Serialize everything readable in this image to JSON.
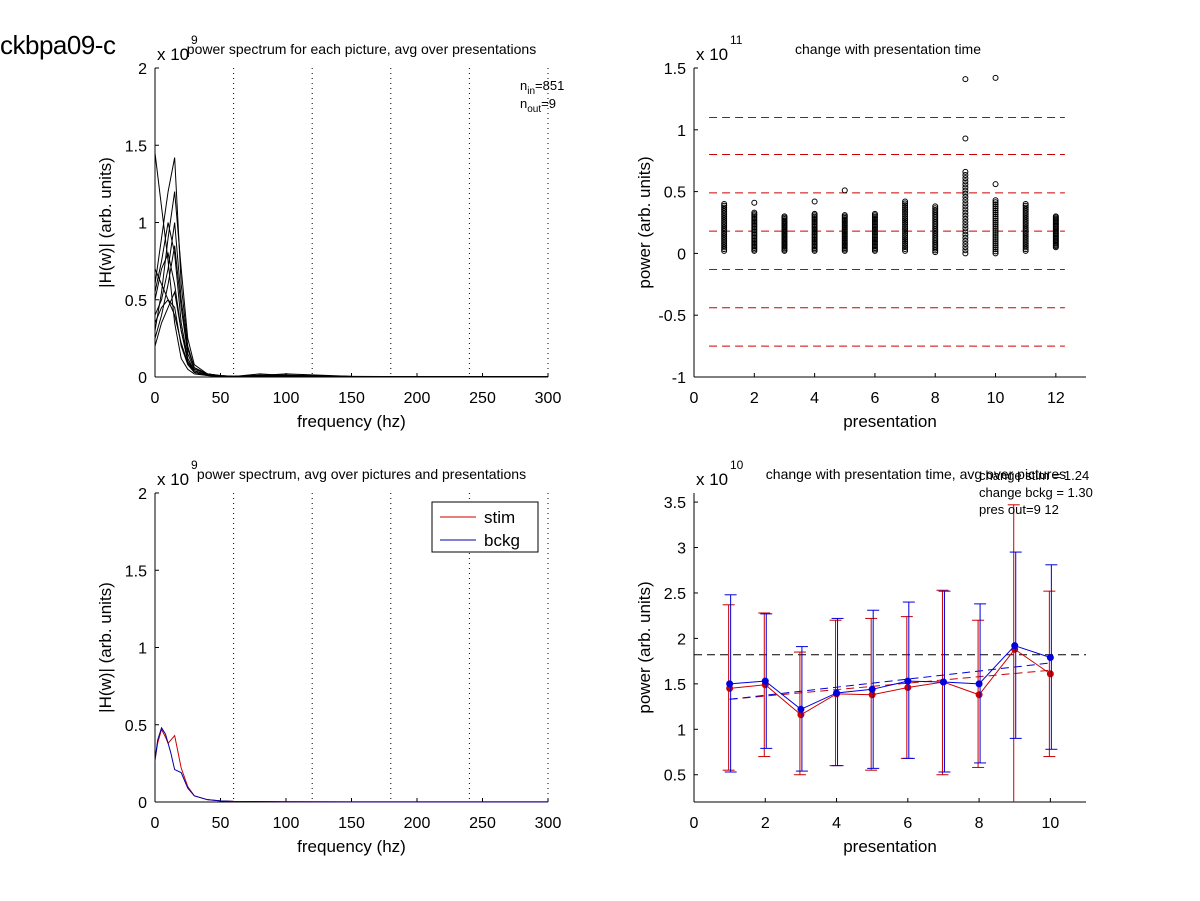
{
  "figure_label": "ckbpa09-c",
  "chart_data": [
    {
      "id": "tl",
      "type": "line",
      "title": "power spectrum for each picture, avg over presentations",
      "xlabel": "frequency (hz)",
      "ylabel": "|H(w)| (arb. units)",
      "xlim": [
        0,
        300
      ],
      "ylim": [
        0,
        2
      ],
      "xticks": [
        "0",
        "50",
        "100",
        "150",
        "200",
        "250",
        "300"
      ],
      "yticks": [
        "0",
        "0.5",
        "1",
        "1.5",
        "2"
      ],
      "exponent_base": "x 10",
      "exponent_power": "9",
      "vlines_dotted": [
        60,
        120,
        180,
        240,
        300
      ],
      "n_in_prefix": "n",
      "n_in_sub": "in",
      "n_in_value": "=851",
      "n_out_prefix": "n",
      "n_out_sub": "out",
      "n_out_value": "=9",
      "line_color": "#000000",
      "x": [
        0,
        5,
        10,
        15,
        20,
        25,
        30,
        40,
        50,
        60,
        80,
        100,
        150,
        200,
        250,
        300
      ],
      "series": [
        {
          "values": [
            1.45,
            1.1,
            0.75,
            0.35,
            0.12,
            0.05,
            0.02,
            0.01,
            0.005,
            0.003,
            0.02,
            0.01,
            0.004,
            0.003,
            0.002,
            0.001
          ]
        },
        {
          "values": [
            0.6,
            0.9,
            1.2,
            1.42,
            0.6,
            0.2,
            0.06,
            0.02,
            0.008,
            0.005,
            0.01,
            0.02,
            0.004,
            0.002,
            0.002,
            0.001
          ]
        },
        {
          "values": [
            0.3,
            0.55,
            0.9,
            1.2,
            0.7,
            0.25,
            0.08,
            0.02,
            0.01,
            0.004,
            0.006,
            0.01,
            0.003,
            0.002,
            0.001,
            0.001
          ]
        },
        {
          "values": [
            0.5,
            0.7,
            0.8,
            0.6,
            0.3,
            0.1,
            0.04,
            0.015,
            0.006,
            0.003,
            0.012,
            0.005,
            0.002,
            0.002,
            0.001,
            0.001
          ]
        },
        {
          "values": [
            0.25,
            0.4,
            0.6,
            0.85,
            0.45,
            0.15,
            0.05,
            0.02,
            0.007,
            0.004,
            0.008,
            0.006,
            0.003,
            0.002,
            0.001,
            0.001
          ]
        },
        {
          "values": [
            0.7,
            0.6,
            0.5,
            0.45,
            0.2,
            0.08,
            0.03,
            0.01,
            0.005,
            0.003,
            0.005,
            0.004,
            0.002,
            0.001,
            0.001,
            0.001
          ]
        },
        {
          "values": [
            0.4,
            0.5,
            0.7,
            1.0,
            0.5,
            0.18,
            0.06,
            0.02,
            0.008,
            0.004,
            0.01,
            0.012,
            0.003,
            0.002,
            0.001,
            0.001
          ]
        },
        {
          "values": [
            0.2,
            0.35,
            0.45,
            0.55,
            0.3,
            0.12,
            0.04,
            0.015,
            0.006,
            0.003,
            0.006,
            0.004,
            0.002,
            0.001,
            0.001,
            0.001
          ]
        },
        {
          "values": [
            0.55,
            0.75,
            1.0,
            0.8,
            0.35,
            0.12,
            0.04,
            0.015,
            0.006,
            0.003,
            0.007,
            0.005,
            0.002,
            0.001,
            0.001,
            0.001
          ]
        },
        {
          "values": [
            0.35,
            0.45,
            0.5,
            0.4,
            0.22,
            0.09,
            0.03,
            0.01,
            0.005,
            0.003,
            0.004,
            0.003,
            0.002,
            0.001,
            0.001,
            0.001
          ]
        }
      ]
    },
    {
      "id": "tr",
      "type": "scatter",
      "title": "change with presentation time",
      "xlabel": "presentation",
      "ylabel": "power (arb. units)",
      "xlim": [
        0,
        13
      ],
      "ylim": [
        -1,
        1.5
      ],
      "xticks": [
        "0",
        "2",
        "4",
        "6",
        "8",
        "10",
        "12"
      ],
      "yticks": [
        "-1",
        "-0.5",
        "0",
        "0.5",
        "1",
        "1.5"
      ],
      "exponent_base": "x 10",
      "exponent_power": "11",
      "hlines_dashed_red": [
        1.1,
        0.8,
        0.49,
        0.18,
        -0.13,
        -0.44,
        -0.75
      ],
      "marker_color": "#000000",
      "dashed_color": "#cc0000",
      "columns": [
        {
          "x": 1,
          "min": 0.02,
          "max": 0.4,
          "outliers": []
        },
        {
          "x": 2,
          "min": 0.02,
          "max": 0.33,
          "outliers": [
            0.41
          ]
        },
        {
          "x": 3,
          "min": 0.02,
          "max": 0.3,
          "outliers": []
        },
        {
          "x": 4,
          "min": 0.02,
          "max": 0.32,
          "outliers": [
            0.42
          ]
        },
        {
          "x": 5,
          "min": 0.02,
          "max": 0.31,
          "outliers": [
            0.51
          ]
        },
        {
          "x": 6,
          "min": 0.02,
          "max": 0.32,
          "outliers": []
        },
        {
          "x": 7,
          "min": 0.02,
          "max": 0.42,
          "outliers": []
        },
        {
          "x": 8,
          "min": 0.01,
          "max": 0.38,
          "outliers": []
        },
        {
          "x": 9,
          "min": 0.0,
          "max": 0.66,
          "outliers": [
            0.93,
            1.41
          ]
        },
        {
          "x": 10,
          "min": 0.0,
          "max": 0.43,
          "outliers": [
            0.56,
            1.42
          ]
        },
        {
          "x": 11,
          "min": 0.02,
          "max": 0.4,
          "outliers": []
        },
        {
          "x": 12,
          "min": 0.05,
          "max": 0.3,
          "outliers": []
        }
      ]
    },
    {
      "id": "bl",
      "type": "line",
      "title": "power spectrum, avg over pictures and presentations",
      "xlabel": "frequency (hz)",
      "ylabel": "|H(w)| (arb. units)",
      "xlim": [
        0,
        300
      ],
      "ylim": [
        0,
        2
      ],
      "xticks": [
        "0",
        "50",
        "100",
        "150",
        "200",
        "250",
        "300"
      ],
      "yticks": [
        "0",
        "0.5",
        "1",
        "1.5",
        "2"
      ],
      "exponent_base": "x 10",
      "exponent_power": "9",
      "vlines_dotted": [
        60,
        120,
        180,
        240,
        300
      ],
      "legend_position": "top-right",
      "x": [
        0,
        2,
        5,
        8,
        10,
        12,
        15,
        20,
        25,
        30,
        40,
        50,
        60,
        100,
        150,
        200,
        250,
        300
      ],
      "series": [
        {
          "name": "stim",
          "color": "#cc0000",
          "values": [
            0.27,
            0.38,
            0.47,
            0.42,
            0.38,
            0.4,
            0.43,
            0.22,
            0.1,
            0.04,
            0.015,
            0.007,
            0.004,
            0.002,
            0.001,
            0.001,
            0.001,
            0.001
          ]
        },
        {
          "name": "bckg",
          "color": "#0000aa",
          "values": [
            0.27,
            0.4,
            0.48,
            0.44,
            0.38,
            0.32,
            0.21,
            0.19,
            0.09,
            0.04,
            0.015,
            0.007,
            0.004,
            0.002,
            0.001,
            0.001,
            0.001,
            0.001
          ]
        }
      ]
    },
    {
      "id": "br",
      "type": "line",
      "title": "change with presentation time, avg over pictures",
      "xlabel": "presentation",
      "ylabel": "power (arb. units)",
      "xlim": [
        0,
        11
      ],
      "ylim": [
        0.2,
        3.6
      ],
      "xticks": [
        "0",
        "2",
        "4",
        "6",
        "8",
        "10"
      ],
      "yticks": [
        "0.5",
        "1",
        "1.5",
        "2",
        "2.5",
        "3",
        "3.5"
      ],
      "exponent_base": "x 10",
      "exponent_power": "10",
      "annotations": [
        "change stim = 1.24",
        "change bckg = 1.30",
        "pres out=9 12"
      ],
      "hline_black_dashed": 1.82,
      "x": [
        1,
        2,
        3,
        4,
        5,
        6,
        7,
        8,
        9,
        10
      ],
      "series": [
        {
          "name": "stim",
          "color": "#cc0000",
          "values": [
            1.45,
            1.49,
            1.16,
            1.39,
            1.38,
            1.46,
            1.52,
            1.38,
            1.88,
            1.61
          ],
          "err_low": [
            0.55,
            0.7,
            0.5,
            0.6,
            0.55,
            0.68,
            0.5,
            0.58,
            0.0,
            0.7
          ],
          "err_high": [
            2.37,
            2.28,
            1.85,
            2.2,
            2.22,
            2.24,
            2.53,
            2.2,
            3.47,
            2.52
          ],
          "trend": [
            1.33,
            1.65
          ]
        },
        {
          "name": "bckg",
          "color": "#0000dd",
          "values": [
            1.5,
            1.53,
            1.22,
            1.4,
            1.44,
            1.53,
            1.52,
            1.5,
            1.92,
            1.79
          ],
          "err_low": [
            0.53,
            0.79,
            0.54,
            0.6,
            0.57,
            0.68,
            0.53,
            0.63,
            0.9,
            0.78
          ],
          "err_high": [
            2.48,
            2.27,
            1.91,
            2.22,
            2.31,
            2.4,
            2.52,
            2.38,
            2.95,
            2.81
          ],
          "trend": [
            1.33,
            1.73
          ]
        }
      ]
    }
  ]
}
